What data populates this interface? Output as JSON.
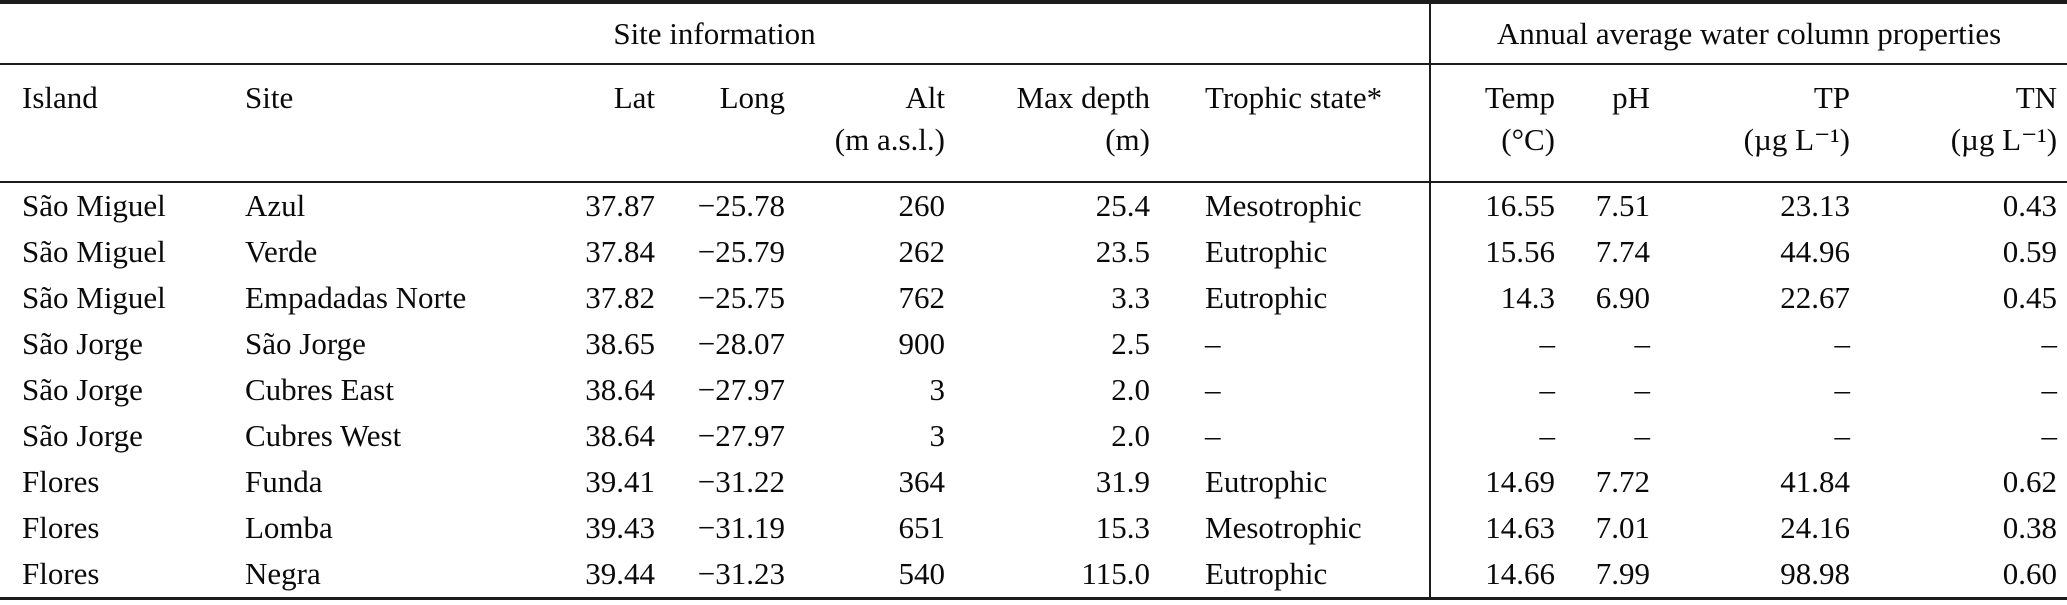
{
  "table": {
    "group_headers": [
      {
        "label": "Site information"
      },
      {
        "label": "Annual average water column properties"
      }
    ],
    "columns": [
      {
        "label": "Island",
        "unit": ""
      },
      {
        "label": "Site",
        "unit": ""
      },
      {
        "label": "Lat",
        "unit": ""
      },
      {
        "label": "Long",
        "unit": ""
      },
      {
        "label": "Alt",
        "unit": "(m a.s.l.)"
      },
      {
        "label": "Max depth",
        "unit": "(m)"
      },
      {
        "label": "Trophic state*",
        "unit": ""
      },
      {
        "label": "Temp",
        "unit": "(°C)"
      },
      {
        "label": "pH",
        "unit": ""
      },
      {
        "label": "TP",
        "unit": "(µg L⁻¹)"
      },
      {
        "label": "TN",
        "unit": "(µg L⁻¹)"
      }
    ],
    "rows": [
      [
        "São Miguel",
        "Azul",
        "37.87",
        "−25.78",
        "260",
        "25.4",
        "Mesotrophic",
        "16.55",
        "7.51",
        "23.13",
        "0.43"
      ],
      [
        "São Miguel",
        "Verde",
        "37.84",
        "−25.79",
        "262",
        "23.5",
        "Eutrophic",
        "15.56",
        "7.74",
        "44.96",
        "0.59"
      ],
      [
        "São Miguel",
        "Empadadas Norte",
        "37.82",
        "−25.75",
        "762",
        "3.3",
        "Eutrophic",
        "14.3",
        "6.90",
        "22.67",
        "0.45"
      ],
      [
        "São Jorge",
        "São Jorge",
        "38.65",
        "−28.07",
        "900",
        "2.5",
        "–",
        "–",
        "–",
        "–",
        "–"
      ],
      [
        "São Jorge",
        "Cubres East",
        "38.64",
        "−27.97",
        "3",
        "2.0",
        "–",
        "–",
        "–",
        "–",
        "–"
      ],
      [
        "São Jorge",
        "Cubres West",
        "38.64",
        "−27.97",
        "3",
        "2.0",
        "–",
        "–",
        "–",
        "–",
        "–"
      ],
      [
        "Flores",
        "Funda",
        "39.41",
        "−31.22",
        "364",
        "31.9",
        "Eutrophic",
        "14.69",
        "7.72",
        "41.84",
        "0.62"
      ],
      [
        "Flores",
        "Lomba",
        "39.43",
        "−31.19",
        "651",
        "15.3",
        "Mesotrophic",
        "14.63",
        "7.01",
        "24.16",
        "0.38"
      ],
      [
        "Flores",
        "Negra",
        "39.44",
        "−31.23",
        "540",
        "115.0",
        "Eutrophic",
        "14.66",
        "7.99",
        "98.98",
        "0.60"
      ]
    ]
  },
  "colors": {
    "text": "#0a0a0a",
    "background": "#ffffff",
    "rule": "#1c1c1c"
  }
}
